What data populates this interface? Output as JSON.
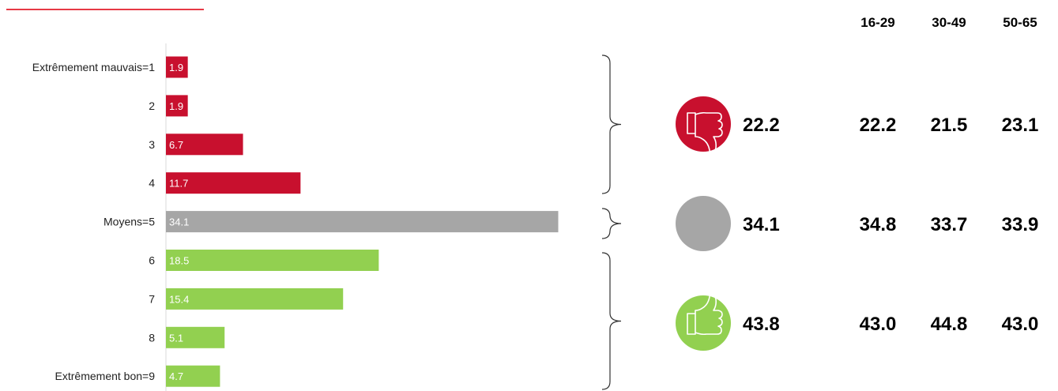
{
  "colors": {
    "negative": "#c8102e",
    "neutral": "#a6a6a6",
    "positive": "#92d050",
    "top_rule": "#e63946"
  },
  "age_groups": [
    "16-29",
    "30-49",
    "50-65"
  ],
  "summary": [
    {
      "group": "negative",
      "icon": "thumbs-down-icon",
      "total": "22.2",
      "by_age": [
        "22.2",
        "21.5",
        "23.1"
      ]
    },
    {
      "group": "neutral",
      "icon": "neutral-circle-icon",
      "total": "34.1",
      "by_age": [
        "34.8",
        "33.7",
        "33.9"
      ]
    },
    {
      "group": "positive",
      "icon": "thumbs-up-icon",
      "total": "43.8",
      "by_age": [
        "43.0",
        "44.8",
        "43.0"
      ]
    }
  ],
  "chart_data": {
    "type": "bar",
    "orientation": "horizontal",
    "categories": [
      "Extrêmement mauvais=1",
      "2",
      "3",
      "4",
      "Moyens=5",
      "6",
      "7",
      "8",
      "Extrêmement bon=9"
    ],
    "values": [
      1.9,
      1.9,
      6.7,
      11.7,
      34.1,
      18.5,
      15.4,
      5.1,
      4.7
    ],
    "value_labels": [
      "1.9",
      "1.9",
      "6.7",
      "11.7",
      "34.1",
      "18.5",
      "15.4",
      "5.1",
      "4.7"
    ],
    "groups": [
      "negative",
      "negative",
      "negative",
      "negative",
      "neutral",
      "positive",
      "positive",
      "positive",
      "positive"
    ],
    "xlim": [
      0,
      35
    ],
    "grid": false,
    "legend": "none"
  }
}
